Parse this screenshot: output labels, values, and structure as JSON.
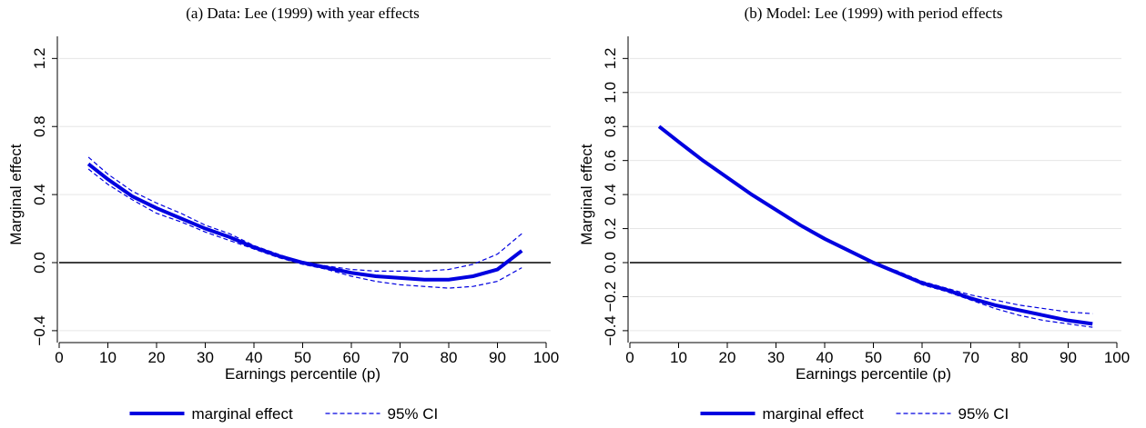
{
  "chart_data": [
    {
      "type": "line",
      "title": "(a) Data: Lee (1999) with year effects",
      "x_label": "Earnings percentile (p)",
      "y_label": "Marginal effect",
      "x": [
        6,
        10,
        15,
        20,
        25,
        30,
        35,
        40,
        45,
        50,
        55,
        60,
        65,
        70,
        75,
        80,
        85,
        90,
        95
      ],
      "series": [
        {
          "name": "marginal effect",
          "color": "#0000e0",
          "style": "solid",
          "values": [
            0.58,
            0.49,
            0.39,
            0.32,
            0.26,
            0.2,
            0.15,
            0.09,
            0.04,
            0.0,
            -0.03,
            -0.06,
            -0.08,
            -0.09,
            -0.1,
            -0.1,
            -0.08,
            -0.04,
            0.07
          ]
        },
        {
          "name": "95% CI",
          "color": "#0000e0",
          "style": "dashed",
          "upper": [
            0.62,
            0.52,
            0.42,
            0.35,
            0.29,
            0.22,
            0.17,
            0.1,
            0.05,
            0.0,
            -0.02,
            -0.04,
            -0.05,
            -0.05,
            -0.05,
            -0.04,
            -0.01,
            0.05,
            0.17
          ],
          "lower": [
            0.55,
            0.46,
            0.37,
            0.29,
            0.24,
            0.18,
            0.13,
            0.08,
            0.03,
            -0.01,
            -0.04,
            -0.08,
            -0.11,
            -0.13,
            -0.14,
            -0.15,
            -0.14,
            -0.11,
            -0.03
          ]
        }
      ],
      "reference_line": 0,
      "xlim": [
        0,
        100
      ],
      "xticks": [
        0,
        10,
        20,
        30,
        40,
        50,
        60,
        70,
        80,
        90,
        100
      ],
      "ylim": [
        -0.47,
        1.33
      ],
      "yticks": [
        {
          "value": -0.4,
          "label": "−0.4"
        },
        {
          "value": 0,
          "label": "0.0"
        },
        0.4,
        0.8,
        1.2
      ],
      "grid": true
    },
    {
      "type": "line",
      "title": "(b) Model: Lee (1999) with period effects",
      "x_label": "Earnings percentile (p)",
      "y_label": "Marginal effect",
      "x": [
        6,
        10,
        15,
        20,
        25,
        30,
        35,
        40,
        45,
        50,
        55,
        60,
        65,
        70,
        75,
        80,
        85,
        90,
        95
      ],
      "series": [
        {
          "name": "marginal effect",
          "color": "#0000e0",
          "style": "solid",
          "values": [
            0.8,
            0.71,
            0.6,
            0.5,
            0.4,
            0.31,
            0.22,
            0.14,
            0.07,
            0.0,
            -0.06,
            -0.12,
            -0.16,
            -0.21,
            -0.25,
            -0.28,
            -0.31,
            -0.34,
            -0.36
          ]
        },
        {
          "name": "95% CI",
          "color": "#0000e0",
          "style": "dashed",
          "upper": [
            0.8,
            0.71,
            0.6,
            0.5,
            0.4,
            0.31,
            0.22,
            0.14,
            0.07,
            0.0,
            -0.05,
            -0.11,
            -0.15,
            -0.19,
            -0.22,
            -0.25,
            -0.27,
            -0.29,
            -0.3
          ],
          "lower": [
            0.8,
            0.71,
            0.6,
            0.5,
            0.4,
            0.31,
            0.22,
            0.14,
            0.07,
            0.0,
            -0.06,
            -0.13,
            -0.17,
            -0.22,
            -0.27,
            -0.31,
            -0.34,
            -0.36,
            -0.38
          ]
        }
      ],
      "reference_line": 0,
      "xlim": [
        0,
        100
      ],
      "xticks": [
        0,
        10,
        20,
        30,
        40,
        50,
        60,
        70,
        80,
        90,
        100
      ],
      "ylim": [
        -0.47,
        1.33
      ],
      "yticks": [
        {
          "value": -0.4,
          "label": "−0.4"
        },
        {
          "value": -0.2,
          "label": "−0.2"
        },
        {
          "value": 0,
          "label": "0.0"
        },
        0.2,
        0.4,
        0.6,
        0.8,
        {
          "value": 1,
          "label": "1.0"
        },
        1.2
      ],
      "grid": true
    }
  ]
}
